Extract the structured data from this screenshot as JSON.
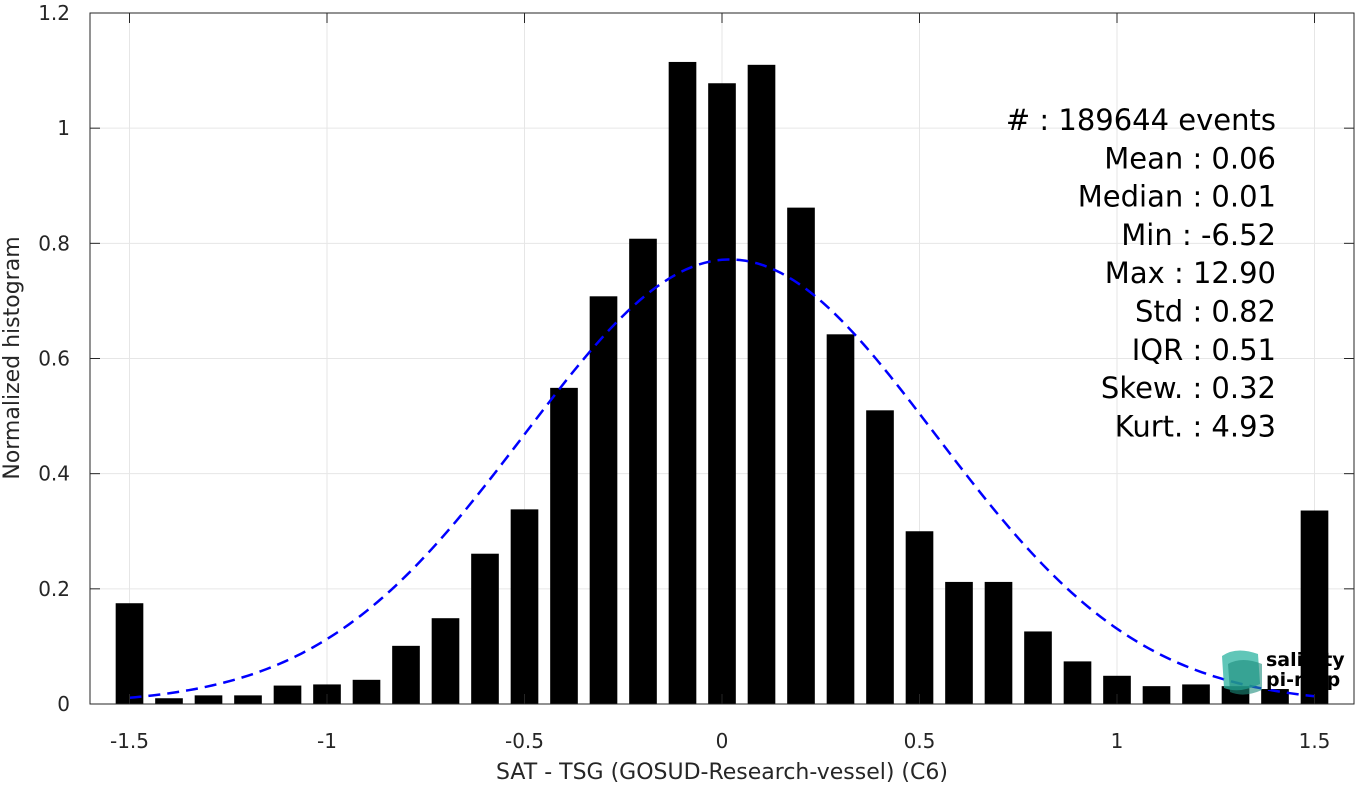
{
  "chart_data": {
    "type": "bar",
    "xlabel": "SAT - TSG (GOSUD-Research-vessel) (C6)",
    "ylabel": "Normalized histogram",
    "xlim": [
      -1.6,
      1.6
    ],
    "ylim": [
      0,
      1.2
    ],
    "xticks": [
      -1.5,
      -1,
      -0.5,
      0,
      0.5,
      1,
      1.5
    ],
    "xtick_labels": [
      "-1.5",
      "-1",
      "-0.5",
      "0",
      "0.5",
      "1",
      "1.5"
    ],
    "yticks": [
      0,
      0.2,
      0.4,
      0.6,
      0.8,
      1,
      1.2
    ],
    "ytick_labels": [
      "0",
      "0.2",
      "0.4",
      "0.6",
      "0.8",
      "1",
      "1.2"
    ],
    "grid": true,
    "bar_colors": "#000000",
    "bins": [
      -1.5,
      -1.4,
      -1.3,
      -1.2,
      -1.1,
      -1.0,
      -0.9,
      -0.8,
      -0.7,
      -0.6,
      -0.5,
      -0.4,
      -0.3,
      -0.2,
      -0.1,
      0.0,
      0.1,
      0.2,
      0.3,
      0.4,
      0.5,
      0.6,
      0.7,
      0.8,
      0.9,
      1.0,
      1.1,
      1.2,
      1.3,
      1.4,
      1.5
    ],
    "values": [
      0.175,
      0.01,
      0.015,
      0.015,
      0.032,
      0.034,
      0.042,
      0.101,
      0.149,
      0.261,
      0.338,
      0.549,
      0.708,
      0.808,
      1.115,
      1.078,
      1.11,
      0.862,
      0.642,
      0.51,
      0.3,
      0.212,
      0.212,
      0.126,
      0.074,
      0.049,
      0.031,
      0.034,
      0.031,
      0.026,
      0.336
    ],
    "fit_curve": {
      "style": "dashed",
      "color": "#0000ff",
      "mean": 0.02,
      "std": 0.52,
      "peak": 0.772,
      "x_range": [
        -1.5,
        1.5
      ]
    },
    "stats": [
      {
        "label": "#  ",
        "value": ": 189644 events"
      },
      {
        "label": "Mean ",
        "value": ": 0.06"
      },
      {
        "label": "Median ",
        "value": ": 0.01"
      },
      {
        "label": "Min ",
        "value": ": -6.52"
      },
      {
        "label": "Max ",
        "value": ": 12.90"
      },
      {
        "label": "Std ",
        "value": ": 0.82"
      },
      {
        "label": "IQR ",
        "value": ": 0.51"
      },
      {
        "label": "Skew. ",
        "value": ": 0.32"
      },
      {
        "label": "Kurt. ",
        "value": ": 4.93"
      }
    ]
  },
  "logo": {
    "line1": "salinity",
    "line2": "pi-mep",
    "color": "#2bb3a0"
  }
}
